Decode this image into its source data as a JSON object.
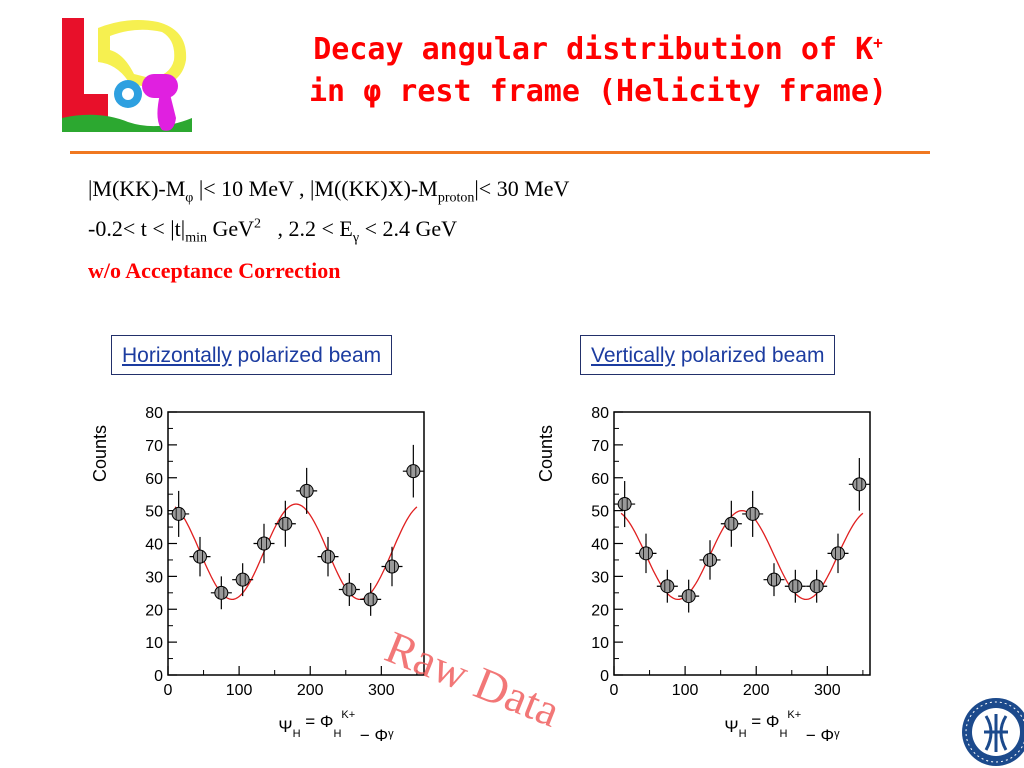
{
  "title": {
    "line1_prefix": "Decay angular distribution of K",
    "line1_sup": "+",
    "line2_prefix": "in ",
    "line2_phi": "φ",
    "line2_suffix": " rest frame (Helicity frame)"
  },
  "conditions": {
    "line1": {
      "a": "|M(KK)-M",
      "a_sub": "φ",
      "b": " |< 10 MeV , |M((KK)X)-M",
      "b_sub": "proton",
      "c": "|< 30 MeV"
    },
    "line2": {
      "a": "-0.2< t < |t|",
      "a_sub": "min",
      "b": " GeV",
      "b_sup": "2",
      "c": "   , 2.2 < E",
      "c_sub": "γ",
      "d": " < 2.4 GeV"
    },
    "line3": "w/o Acceptance Correction"
  },
  "labels": {
    "horizontal": {
      "u": "Horizontally",
      "rest": " polarized beam"
    },
    "vertical": {
      "u": "Vertically",
      "rest": " polarized beam"
    }
  },
  "watermark": "Raw Data",
  "colors": {
    "title": "#ff0000",
    "rule": "#f07820",
    "label_text": "#1c3ca0",
    "fit": "#e02020",
    "marker": "#9a9a9a"
  },
  "chart_data": [
    {
      "type": "scatter",
      "title": "",
      "ylabel": "Counts",
      "xlabel": "Ψ_H = Φ_H^K+ − Φ_γ",
      "xlim": [
        0,
        360
      ],
      "ylim": [
        0,
        80
      ],
      "xticks": [
        0,
        100,
        200,
        300
      ],
      "yticks": [
        0,
        10,
        20,
        30,
        40,
        50,
        60,
        70,
        80
      ],
      "x": [
        15,
        45,
        75,
        105,
        135,
        165,
        195,
        225,
        255,
        285,
        315,
        345
      ],
      "y": [
        49,
        36,
        25,
        29,
        40,
        46,
        56,
        36,
        26,
        23,
        33,
        62
      ],
      "yerr": [
        7,
        6,
        5,
        5,
        6,
        7,
        7,
        6,
        5,
        5,
        6,
        8
      ],
      "fit": {
        "type": "line",
        "form": "A + B*cos(2x)",
        "A": 37.5,
        "B": 14.5,
        "phase_deg": 0
      }
    },
    {
      "type": "scatter",
      "title": "",
      "ylabel": "Counts",
      "xlabel": "Ψ_H = Φ_H^K+ − Φ_γ",
      "xlim": [
        0,
        360
      ],
      "ylim": [
        0,
        80
      ],
      "xticks": [
        0,
        100,
        200,
        300
      ],
      "yticks": [
        0,
        10,
        20,
        30,
        40,
        50,
        60,
        70,
        80
      ],
      "x": [
        15,
        45,
        75,
        105,
        135,
        165,
        195,
        225,
        255,
        285,
        315,
        345
      ],
      "y": [
        52,
        37,
        27,
        24,
        35,
        46,
        49,
        29,
        27,
        27,
        37,
        58
      ],
      "yerr": [
        7,
        6,
        5,
        5,
        6,
        7,
        7,
        5,
        5,
        5,
        6,
        8
      ],
      "fit": {
        "type": "line",
        "form": "A + B*cos(2x-φ)",
        "A": 36.5,
        "B": 13.5,
        "phase_deg": 0
      }
    }
  ]
}
